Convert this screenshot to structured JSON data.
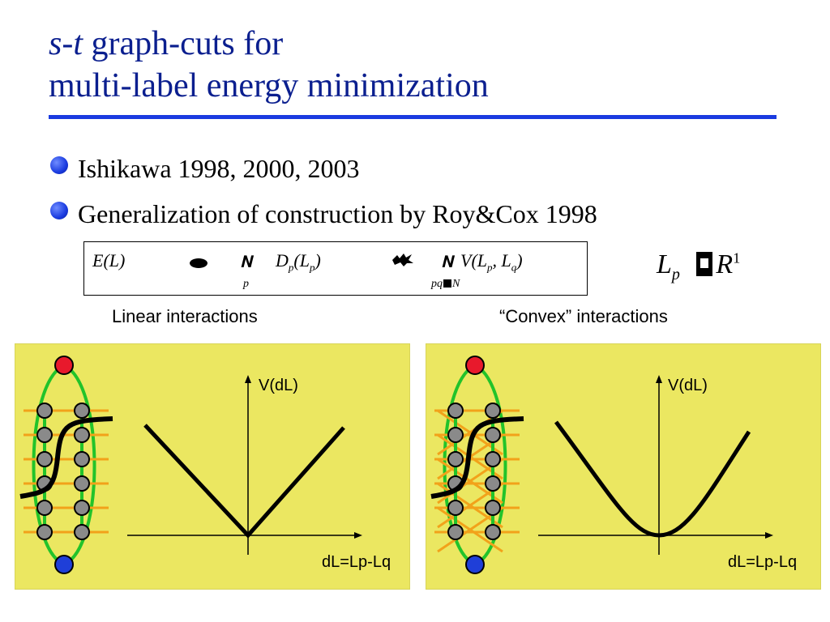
{
  "slide": {
    "title_italic": "s-t",
    "title_rest": " graph-cuts for",
    "title_line2": "multi-label energy minimization",
    "bullets": [
      "Ishikawa 1998, 2000, 2003",
      "Generalization of construction by Roy&Cox 1998"
    ],
    "formula": {
      "E": "E(L)",
      "sum1_sub": "p",
      "D": "D",
      "D_sub": "p",
      "D_arg": "(L",
      "D_arg_sub": "p",
      "D_close": ")",
      "V": "V(L",
      "V_sub1": "p",
      "V_mid": ", L",
      "V_sub2": "q",
      "V_close": ")",
      "sum2_sub": "pq",
      "sum2_sub_tail": "N",
      "domain_lhs": "L",
      "domain_lhs_sub": "p",
      "domain_rhs": "R",
      "domain_sup": "1"
    },
    "captions": {
      "linear": "Linear interactions",
      "convex": "“Convex” interactions"
    },
    "panels": [
      {
        "kind": "linear",
        "y_label": "V(dL)",
        "x_label": "dL=Lp-Lq"
      },
      {
        "kind": "convex",
        "y_label": "V(dL)",
        "x_label": "dL=Lp-Lq"
      }
    ],
    "colors": {
      "title": "#0b1f8f",
      "rule": "#1a3be0",
      "panel_bg": "#ebe761",
      "source_node": "#e8192c",
      "sink_node": "#1f3fd8",
      "graph_edges": "#22c32a",
      "node_fill": "#8a8a8a",
      "cross_edges": "#f2a21a"
    }
  }
}
